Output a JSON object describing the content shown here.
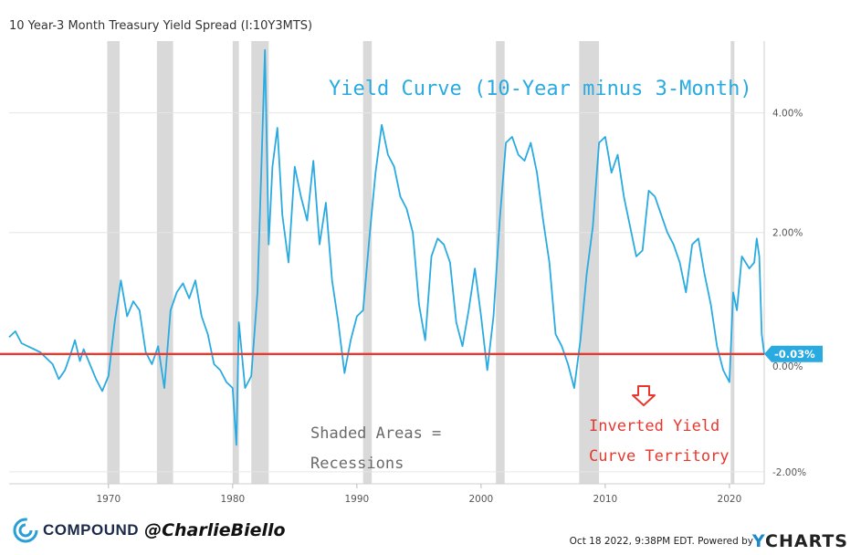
{
  "header": {
    "title": "10 Year-3 Month Treasury Yield Spread (I:10Y3MTS)"
  },
  "annotations": {
    "curve_label": "Yield Curve (10-Year minus 3-Month)",
    "shaded_line1": "Shaded Areas =",
    "shaded_line2": "Recessions",
    "inverted_line1": "Inverted Yield",
    "inverted_line2": "Curve Territory",
    "current_badge": "-0.03%",
    "partial_tick": "0.00%"
  },
  "footer": {
    "brand": "COMPOUND",
    "handle": "@CharlieBiello",
    "timestamp": "Oct 18 2022, 9:38PM EDT.",
    "powered_by": "Powered by",
    "ycharts_y": "Y",
    "ycharts_rest": "CHARTS"
  },
  "colors": {
    "series": "#29abe2",
    "threshold": "#e8372e",
    "recession": "#d9d9d9",
    "badge": "#29abe2"
  },
  "chart_data": {
    "type": "line",
    "title": "10 Year-3 Month Treasury Yield Spread (I:10Y3MTS)",
    "xlabel": "",
    "ylabel": "",
    "xlim": [
      1962,
      2022.8
    ],
    "ylim": [
      -2.2,
      5.2
    ],
    "x_ticks": [
      1970,
      1980,
      1990,
      2000,
      2010,
      2020
    ],
    "y_ticks": [
      {
        "value": 4,
        "label": "4.00%"
      },
      {
        "value": 2,
        "label": "2.00%"
      },
      {
        "value": -2,
        "label": "-2.00%"
      }
    ],
    "threshold": -0.03,
    "recessions": [
      [
        1969.9,
        1970.9
      ],
      [
        1973.9,
        1975.2
      ],
      [
        1980.0,
        1980.5
      ],
      [
        1981.5,
        1982.9
      ],
      [
        1990.5,
        1991.2
      ],
      [
        2001.2,
        2001.9
      ],
      [
        2007.9,
        2009.5
      ],
      [
        2020.1,
        2020.4
      ]
    ],
    "series": [
      {
        "name": "Yield Curve (10-Year minus 3-Month)",
        "x": [
          1962.0,
          1962.5,
          1963.0,
          1963.5,
          1964.0,
          1964.5,
          1965.0,
          1965.5,
          1966.0,
          1966.5,
          1967.0,
          1967.3,
          1967.7,
          1968.0,
          1968.5,
          1969.0,
          1969.5,
          1970.0,
          1970.5,
          1971.0,
          1971.5,
          1972.0,
          1972.5,
          1973.0,
          1973.5,
          1974.0,
          1974.5,
          1975.0,
          1975.5,
          1976.0,
          1976.5,
          1977.0,
          1977.5,
          1978.0,
          1978.5,
          1979.0,
          1979.5,
          1980.0,
          1980.3,
          1980.5,
          1981.0,
          1981.5,
          1982.0,
          1982.3,
          1982.6,
          1982.9,
          1983.2,
          1983.6,
          1984.0,
          1984.5,
          1985.0,
          1985.5,
          1986.0,
          1986.5,
          1987.0,
          1987.5,
          1988.0,
          1988.5,
          1989.0,
          1989.5,
          1990.0,
          1990.5,
          1991.0,
          1991.5,
          1992.0,
          1992.5,
          1993.0,
          1993.5,
          1994.0,
          1994.5,
          1995.0,
          1995.5,
          1996.0,
          1996.5,
          1997.0,
          1997.5,
          1998.0,
          1998.5,
          1999.0,
          1999.5,
          2000.0,
          2000.5,
          2001.0,
          2001.5,
          2002.0,
          2002.5,
          2003.0,
          2003.5,
          2004.0,
          2004.5,
          2005.0,
          2005.5,
          2006.0,
          2006.5,
          2007.0,
          2007.5,
          2008.0,
          2008.5,
          2009.0,
          2009.5,
          2010.0,
          2010.5,
          2011.0,
          2011.5,
          2012.0,
          2012.5,
          2013.0,
          2013.5,
          2014.0,
          2014.5,
          2015.0,
          2015.5,
          2016.0,
          2016.5,
          2017.0,
          2017.5,
          2018.0,
          2018.5,
          2019.0,
          2019.5,
          2020.0,
          2020.3,
          2020.6,
          2021.0,
          2021.3,
          2021.6,
          2022.0,
          2022.2,
          2022.4,
          2022.6,
          2022.8
        ],
        "y": [
          0.25,
          0.35,
          0.15,
          0.1,
          0.05,
          0.0,
          -0.1,
          -0.2,
          -0.45,
          -0.3,
          0.0,
          0.2,
          -0.15,
          0.05,
          -0.2,
          -0.45,
          -0.65,
          -0.4,
          0.5,
          1.2,
          0.6,
          0.85,
          0.7,
          0.0,
          -0.2,
          0.1,
          -0.6,
          0.7,
          1.0,
          1.15,
          0.9,
          1.2,
          0.6,
          0.3,
          -0.2,
          -0.3,
          -0.5,
          -0.6,
          -1.55,
          0.5,
          -0.6,
          -0.4,
          1.0,
          3.0,
          5.05,
          1.8,
          3.1,
          3.75,
          2.3,
          1.5,
          3.1,
          2.6,
          2.2,
          3.2,
          1.8,
          2.5,
          1.2,
          0.5,
          -0.35,
          0.2,
          0.6,
          0.7,
          1.9,
          3.0,
          3.8,
          3.3,
          3.1,
          2.6,
          2.4,
          2.0,
          0.8,
          0.2,
          1.6,
          1.9,
          1.8,
          1.5,
          0.5,
          0.1,
          0.7,
          1.4,
          0.6,
          -0.3,
          0.6,
          2.2,
          3.5,
          3.6,
          3.3,
          3.2,
          3.5,
          3.0,
          2.2,
          1.5,
          0.3,
          0.1,
          -0.2,
          -0.6,
          0.2,
          1.3,
          2.1,
          3.5,
          3.6,
          3.0,
          3.3,
          2.6,
          2.1,
          1.6,
          1.7,
          2.7,
          2.6,
          2.3,
          2.0,
          1.8,
          1.5,
          1.0,
          1.8,
          1.9,
          1.3,
          0.8,
          0.1,
          -0.3,
          -0.5,
          1.0,
          0.7,
          1.6,
          1.5,
          1.4,
          1.5,
          1.9,
          1.6,
          0.3,
          -0.03
        ]
      }
    ]
  }
}
